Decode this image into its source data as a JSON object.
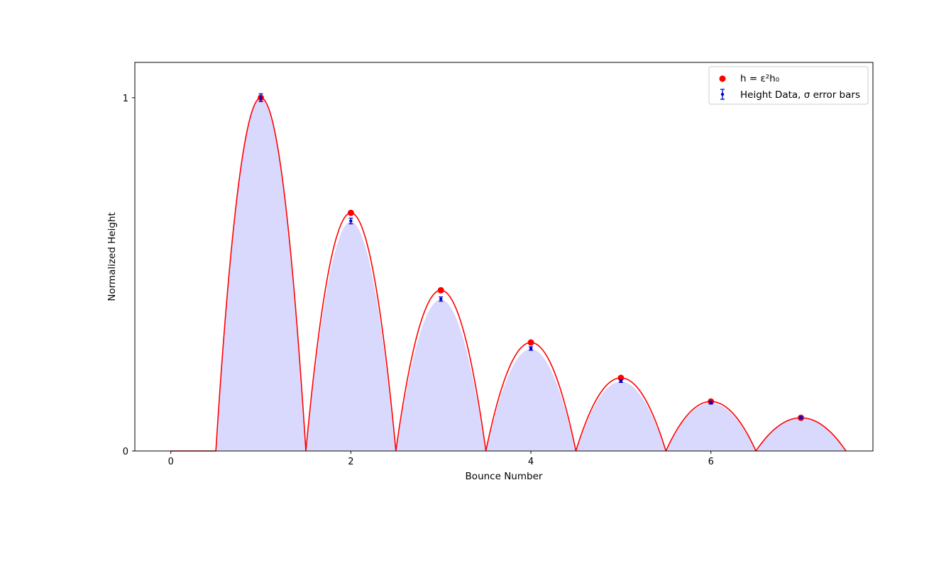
{
  "chart_data": {
    "type": "line",
    "xlabel": "Bounce Number",
    "ylabel": "Normalized Height",
    "xlim": [
      -0.4,
      7.8
    ],
    "ylim": [
      0,
      1.1
    ],
    "x_ticks": [
      0,
      2,
      4,
      6
    ],
    "x_tick_labels": [
      "0",
      "2",
      "4",
      "6"
    ],
    "y_ticks": [
      0,
      1
    ],
    "y_tick_labels": [
      "0",
      "1"
    ],
    "grid": false,
    "legend_position": "top-right",
    "legend": [
      {
        "label": "h = ε²h₀",
        "marker": "red-dot"
      },
      {
        "label": "Height Data, σ error bars",
        "marker": "blue-errorbar"
      }
    ],
    "series": [
      {
        "name": "h = ε²h₀",
        "kind": "scatter+arcs",
        "x": [
          1,
          2,
          3,
          4,
          5,
          6,
          7
        ],
        "y": [
          1.0,
          0.674,
          0.455,
          0.307,
          0.207,
          0.14,
          0.094
        ]
      },
      {
        "name": "Height Data, σ error bars",
        "kind": "errorbar+filled-arcs",
        "x": [
          1,
          2,
          3,
          4,
          5,
          6,
          7
        ],
        "y": [
          1.0,
          0.651,
          0.43,
          0.29,
          0.198,
          0.137,
          0.094
        ],
        "yerr": [
          0.011,
          0.008,
          0.006,
          0.005,
          0.004,
          0.004,
          0.003
        ]
      }
    ],
    "colors": {
      "model": "#ff0000",
      "data": "#0000cc",
      "fill": "#d9d9fd",
      "fill_edge": "#ffffff"
    }
  }
}
